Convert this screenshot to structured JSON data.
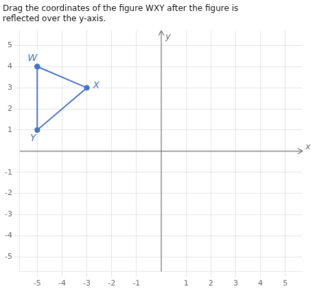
{
  "chart_data": {
    "type": "line",
    "title": [
      "Drag the coordinates of the figure WXY after the figure is",
      "reflected over the y-axis."
    ],
    "x_label": "x",
    "y_label": "y",
    "x": [
      -5,
      -3,
      -5,
      -5
    ],
    "values": [
      4,
      3,
      1,
      4
    ],
    "color": "#4472c4",
    "marker": "circle",
    "line_style": "solid",
    "annotations": [
      {
        "text": "W",
        "x": -5,
        "y": 4
      },
      {
        "text": "X",
        "x": -3,
        "y": 3
      },
      {
        "text": "Y",
        "x": -5,
        "y": 1
      }
    ],
    "xlim": [
      -5.7,
      5.7
    ],
    "ylim": [
      -5.7,
      5.7
    ],
    "xticks": [
      -5,
      -4,
      -3,
      -2,
      -1,
      1,
      2,
      3,
      4,
      5
    ],
    "yticks": [
      -5,
      -4,
      -3,
      -2,
      -1,
      1,
      2,
      3,
      4,
      5
    ],
    "grid": true,
    "legend": false
  }
}
